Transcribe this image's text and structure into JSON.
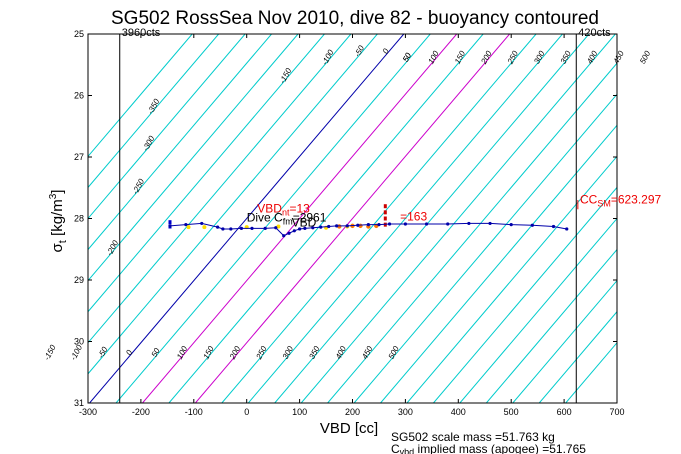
{
  "chart_data": {
    "type": "line",
    "title": "SG502 RossSea Nov 2010, dive 82 - buoyancy contoured",
    "xlabel": "VBD [cc]",
    "ylabel": "σ_t [kg/m^3]",
    "xlim": [
      -300,
      700
    ],
    "ylim": [
      31,
      25
    ],
    "x_ticks": [
      "-300",
      "-200",
      "-100",
      "0",
      "100",
      "200",
      "300",
      "400",
      "500",
      "600",
      "700"
    ],
    "y_ticks": [
      "25",
      "26",
      "27",
      "28",
      "29",
      "30",
      "31"
    ],
    "grid": false,
    "vertical_lines": [
      {
        "x": -240,
        "label": "3960cts"
      },
      {
        "x": 623,
        "label": "420cts"
      }
    ],
    "contours": {
      "cyan": [
        -400,
        -350,
        -300,
        -250,
        -200,
        -150,
        -100,
        -50,
        0,
        50,
        100,
        150,
        200,
        250,
        300,
        350,
        400,
        450,
        500,
        550,
        600,
        650,
        700,
        750,
        800,
        850,
        900
      ],
      "cyan_color": "#00cccc",
      "zero_color": "#0000aa",
      "magenta": [
        100,
        200
      ],
      "magenta_color": "#cc00cc",
      "slope_vbd_per_sigma": -99,
      "top_labels": [
        {
          "value": "-350",
          "sigma": 26.2
        },
        {
          "value": "-300",
          "sigma": 26.8
        },
        {
          "value": "-250",
          "sigma": 27.5
        },
        {
          "value": "-200",
          "sigma": 28.5
        },
        {
          "value": "-150",
          "sigma": 25.7
        },
        {
          "value": "-100",
          "sigma": 25.4
        },
        {
          "value": "-50",
          "sigma": 25.3
        },
        {
          "value": "0",
          "sigma": 25.3
        },
        {
          "value": "50",
          "sigma": 25.4
        },
        {
          "value": "50",
          "sigma": 25.4
        },
        {
          "value": "100",
          "sigma": 25.4
        },
        {
          "value": "150",
          "sigma": 25.4
        },
        {
          "value": "200",
          "sigma": 25.4
        },
        {
          "value": "250",
          "sigma": 25.4
        },
        {
          "value": "300",
          "sigma": 25.4
        },
        {
          "value": "350",
          "sigma": 25.4
        },
        {
          "value": "400",
          "sigma": 25.4
        },
        {
          "value": "450",
          "sigma": 25.4
        },
        {
          "value": "500",
          "sigma": 25.4
        }
      ],
      "bottom_labels": [
        {
          "value": "-150",
          "sigma": 30.2
        },
        {
          "value": "-100",
          "sigma": 30.2
        },
        {
          "value": "-50",
          "sigma": 30.2
        },
        {
          "value": "0",
          "sigma": 30.2
        },
        {
          "value": "50",
          "sigma": 30.2
        },
        {
          "value": "100",
          "sigma": 30.2
        },
        {
          "value": "150",
          "sigma": 30.2
        },
        {
          "value": "200",
          "sigma": 30.2
        },
        {
          "value": "250",
          "sigma": 30.2
        },
        {
          "value": "300",
          "sigma": 30.2
        },
        {
          "value": "350",
          "sigma": 30.2
        },
        {
          "value": "400",
          "sigma": 30.2
        },
        {
          "value": "450",
          "sigma": 30.2
        },
        {
          "value": "500",
          "sigma": 30.2
        }
      ]
    },
    "series": [
      {
        "color": "#0000aa",
        "x": [
          -145,
          -115,
          -85,
          -55,
          -45,
          -30,
          -10,
          10,
          35,
          55,
          70,
          80,
          90,
          100,
          110,
          125,
          140,
          155,
          170,
          190,
          210,
          230,
          250,
          270,
          300,
          340,
          380,
          420,
          460,
          500,
          540,
          580,
          605
        ],
        "y": [
          28.12,
          28.1,
          28.08,
          28.14,
          28.17,
          28.17,
          28.16,
          28.16,
          28.16,
          28.15,
          28.28,
          28.24,
          28.2,
          28.17,
          28.16,
          28.15,
          28.14,
          28.13,
          28.12,
          28.12,
          28.11,
          28.1,
          28.1,
          28.09,
          28.09,
          28.09,
          28.09,
          28.08,
          28.08,
          28.1,
          28.11,
          28.13,
          28.17
        ]
      }
    ],
    "markers": {
      "yellow": [
        [
          -110,
          28.14
        ],
        [
          -80,
          28.14
        ],
        [
          0,
          28.14
        ],
        [
          60,
          28.13
        ],
        [
          150,
          28.15
        ],
        [
          190,
          28.13
        ]
      ],
      "orange": [
        [
          175,
          28.13
        ],
        [
          200,
          28.12
        ],
        [
          215,
          28.12
        ],
        [
          230,
          28.13
        ],
        [
          245,
          28.12
        ]
      ],
      "red_stack_x": 262,
      "red_stack_y": [
        27.8,
        27.9,
        28.0,
        28.1
      ],
      "blue_stack_x": -145,
      "blue_stack_y": [
        28.06,
        28.13
      ]
    },
    "annotations": [
      {
        "text": "VBD",
        "sub": "nt",
        "rest": "=13",
        "color": "red",
        "x": 20,
        "y": 27.9
      },
      {
        "text": "Dive C",
        "sub": "fm",
        "rest": "=2961",
        "color": "black",
        "x": 0,
        "y": 28.05
      },
      {
        "text": "VBD",
        "sub": "",
        "rest": "",
        "color": "black",
        "x": 85,
        "y": 28.13
      },
      {
        "text": "=163",
        "sub": "",
        "rest": "",
        "color": "red",
        "x": 290,
        "y": 28.03
      },
      {
        "text": "CC",
        "sub": "SM",
        "rest": "=623.297",
        "color": "red",
        "x": 630,
        "y": 27.76
      }
    ],
    "footer": [
      "SG502 scale mass =51.763 kg",
      "C",
      "vbd",
      "implied mass (apogee) =51.765"
    ]
  }
}
